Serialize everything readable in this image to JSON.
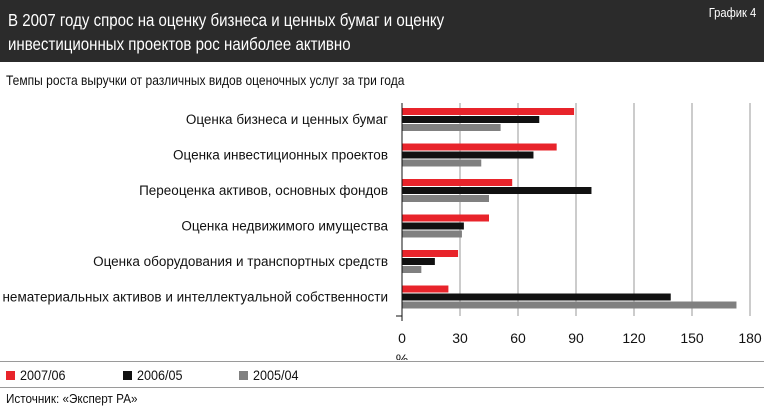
{
  "header": {
    "title": "В 2007 году спрос на оценку бизнеса и ценных бумаг и оценку инвестиционных проектов рос наиболее активно",
    "tag": "График 4"
  },
  "source": "Источник: «Эксперт РА»",
  "chart_data": {
    "type": "bar",
    "orientation": "horizontal",
    "title": "Темпы роста выручки от различных видов оценочных услуг за три года",
    "xlabel": "%",
    "xlim": [
      0,
      180
    ],
    "xticks": [
      0,
      30,
      60,
      90,
      120,
      150,
      180
    ],
    "grid": true,
    "legend_position": "bottom-left",
    "categories": [
      "Оценка бизнеса и ценных бумаг",
      "Оценка инвестиционных проектов",
      "Переоценка активов, основных фондов",
      "Оценка недвижимого имущества",
      "Оценка оборудования и транспортных средств",
      "Оценка нематериальных активов и интеллектуальной собственности"
    ],
    "series": [
      {
        "name": "2007/06",
        "color": "#e8242b",
        "values": [
          89,
          80,
          57,
          45,
          29,
          24
        ]
      },
      {
        "name": "2006/05",
        "color": "#111111",
        "values": [
          71,
          68,
          98,
          32,
          17,
          139
        ]
      },
      {
        "name": "2005/04",
        "color": "#808080",
        "values": [
          51,
          41,
          45,
          31,
          10,
          173
        ]
      }
    ]
  }
}
